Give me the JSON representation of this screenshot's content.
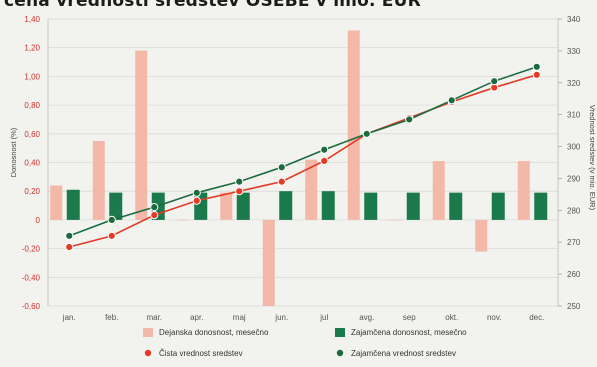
{
  "title": "cena vrednosti sredstev OSEBE v mio. EUR",
  "chart_data": {
    "type": "bar+line",
    "categories": [
      "jan.",
      "feb.",
      "mar.",
      "apr.",
      "maj",
      "jun.",
      "jul",
      "avg.",
      "sep",
      "okt.",
      "nov.",
      "dec."
    ],
    "ylabel_left": "Donosnost (%)",
    "ylabel_right": "Vrednost sredstev (v mio. EUR)",
    "ylim_left": [
      -0.6,
      1.4
    ],
    "ylim_right": [
      250,
      340
    ],
    "yticks_left": [
      "1,40",
      "1,20",
      "1,00",
      "0,80",
      "0,60",
      "0,40",
      "0,20",
      "0",
      "-0,20",
      "-0,40",
      "-0,60"
    ],
    "yticks_right": [
      "340",
      "330",
      "320",
      "310",
      "300",
      "290",
      "280",
      "270",
      "260",
      "250"
    ],
    "grid": "horizontal",
    "legend_placement": "bottom",
    "bar_series": [
      {
        "name": "Dejanska donosnost, mesečno",
        "color": "#f3b8a8",
        "values": [
          0.24,
          0.55,
          1.18,
          0.0,
          0.19,
          -0.6,
          0.42,
          1.32,
          0.0,
          0.41,
          -0.22,
          0.41
        ]
      },
      {
        "name": "Zajamčena donosnost, mesečno",
        "color": "#1b7a4c",
        "values": [
          0.21,
          0.19,
          0.19,
          0.19,
          0.19,
          0.2,
          0.2,
          0.19,
          0.19,
          0.19,
          0.19,
          0.19
        ]
      }
    ],
    "line_series": [
      {
        "name": "Čista vrednost sredstev",
        "color": "#e43a26",
        "values": [
          268.5,
          272,
          278.5,
          283,
          286,
          289,
          295.5,
          304,
          309,
          314,
          318.5,
          322.5
        ]
      },
      {
        "name": "Zajamčena vrednost sredstev",
        "color": "#1b6b3e",
        "values": [
          272,
          277,
          281,
          285.5,
          289,
          293.5,
          299,
          304,
          308.5,
          314.5,
          320.5,
          325
        ]
      }
    ]
  }
}
